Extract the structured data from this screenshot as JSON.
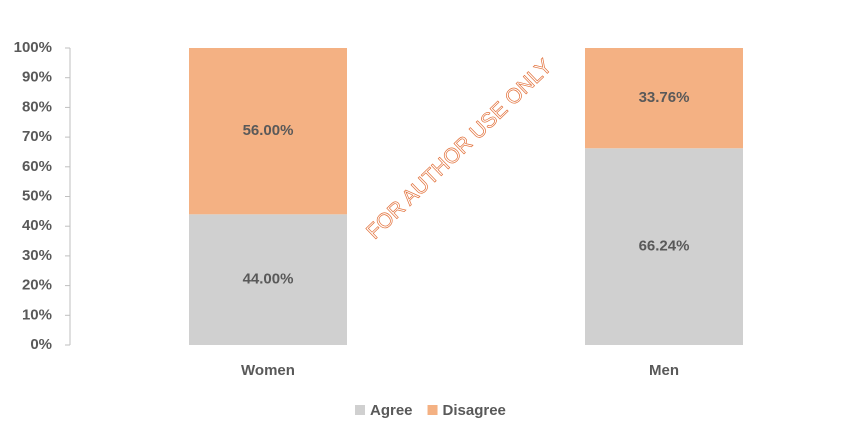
{
  "chart_data": {
    "type": "stacked_bar",
    "categories": [
      "Women",
      "Men"
    ],
    "series": [
      {
        "name": "Agree",
        "color": "#d0d0d0",
        "values": [
          44.0,
          66.24
        ],
        "value_labels": [
          "44.00%",
          "66.24%"
        ]
      },
      {
        "name": "Disagree",
        "color": "#f4b183",
        "values": [
          56.0,
          33.76
        ],
        "value_labels": [
          "56.00%",
          "33.76%"
        ]
      }
    ],
    "ylim": [
      0,
      100
    ],
    "yticks": [
      {
        "value": 0,
        "label": "0%"
      },
      {
        "value": 10,
        "label": "10%"
      },
      {
        "value": 20,
        "label": "20%"
      },
      {
        "value": 30,
        "label": "30%"
      },
      {
        "value": 40,
        "label": "40%"
      },
      {
        "value": 50,
        "label": "50%"
      },
      {
        "value": 60,
        "label": "60%"
      },
      {
        "value": 70,
        "label": "70%"
      },
      {
        "value": 80,
        "label": "80%"
      },
      {
        "value": 90,
        "label": "90%"
      },
      {
        "value": 100,
        "label": "100%"
      }
    ],
    "legend": "bottom",
    "annotations": [
      "FOR AUTHOR USE ONLY"
    ]
  }
}
